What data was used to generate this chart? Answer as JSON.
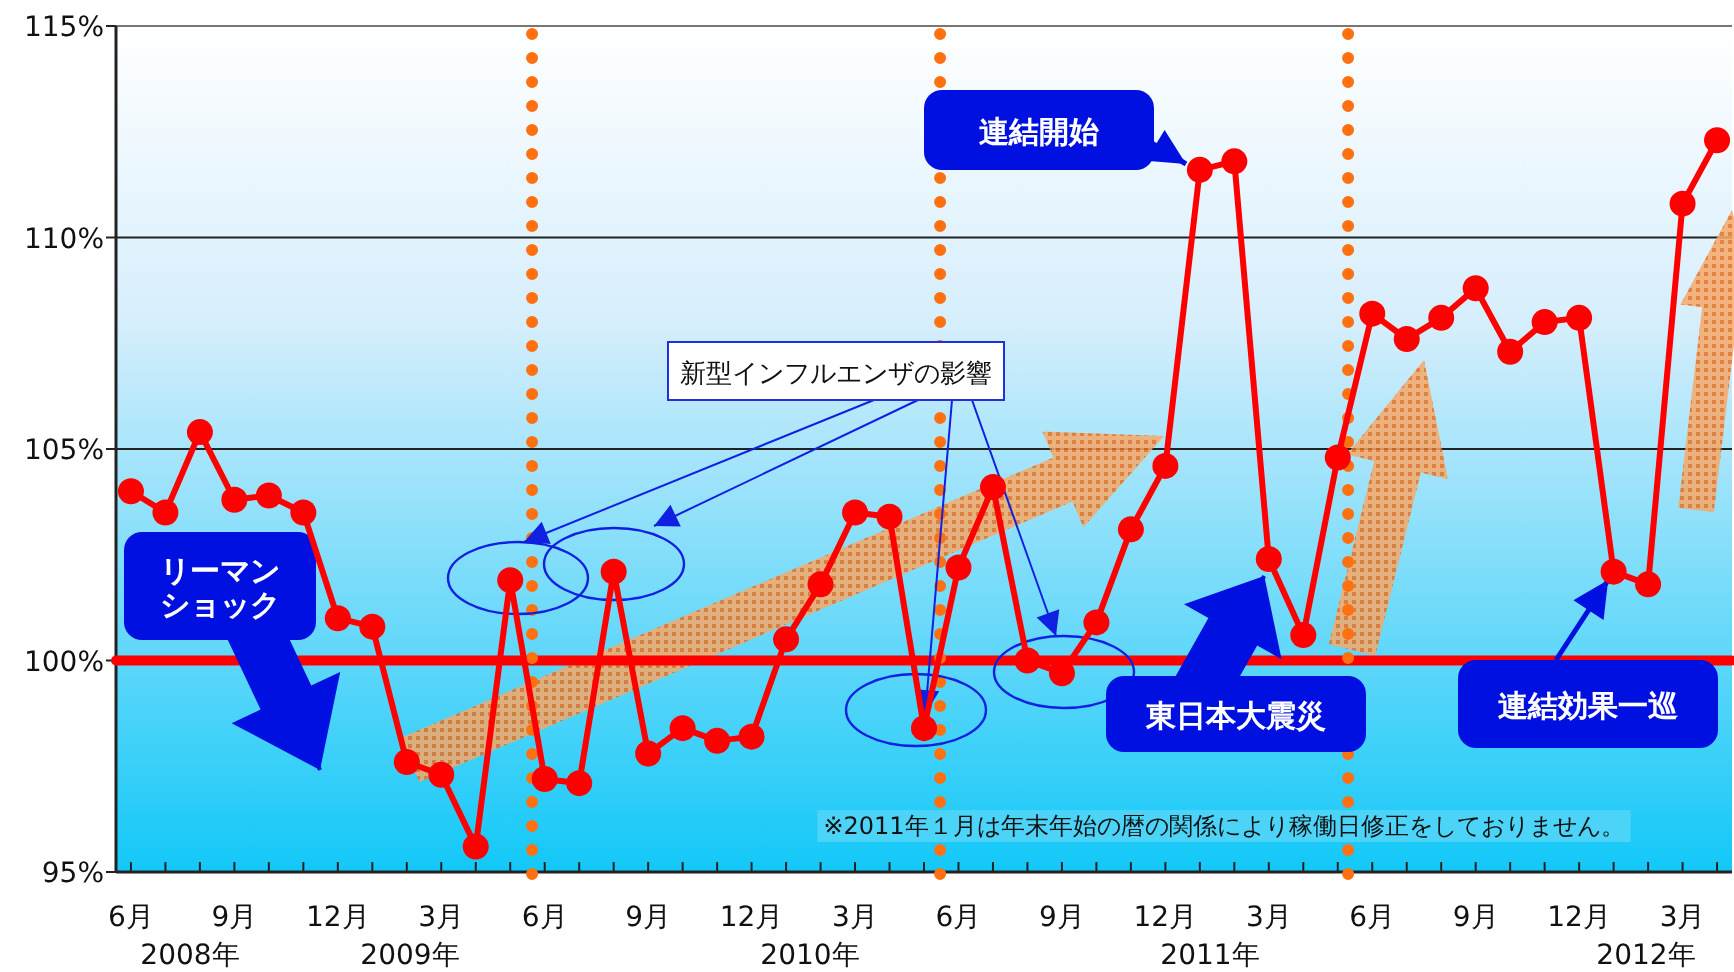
{
  "chart_data": {
    "type": "line",
    "x": [
      "2008-06",
      "2008-07",
      "2008-08",
      "2008-09",
      "2008-10",
      "2008-11",
      "2008-12",
      "2009-01",
      "2009-02",
      "2009-03",
      "2009-04",
      "2009-05",
      "2009-06",
      "2009-07",
      "2009-08",
      "2009-09",
      "2009-10",
      "2009-11",
      "2009-12",
      "2010-01",
      "2010-02",
      "2010-03",
      "2010-04",
      "2010-05",
      "2010-06",
      "2010-07",
      "2010-08",
      "2010-09",
      "2010-10",
      "2010-11",
      "2010-12",
      "2011-01",
      "2011-02",
      "2011-03",
      "2011-04",
      "2011-05",
      "2011-06",
      "2011-07",
      "2011-08",
      "2011-09",
      "2011-10",
      "2011-11",
      "2011-12",
      "2012-01",
      "2012-02",
      "2012-03",
      "2012-04"
    ],
    "series": [
      {
        "color": "#ff0000",
        "values": [
          104.0,
          103.5,
          105.4,
          103.8,
          103.9,
          103.5,
          101.0,
          100.8,
          97.6,
          97.3,
          95.6,
          101.9,
          97.2,
          97.1,
          102.1,
          97.8,
          98.4,
          98.1,
          98.2,
          100.5,
          101.8,
          103.5,
          103.4,
          98.4,
          102.2,
          104.1,
          100.0,
          99.7,
          100.9,
          103.1,
          104.6,
          111.6,
          111.8,
          102.4,
          100.6,
          104.8,
          108.2,
          107.6,
          108.1,
          108.8,
          107.3,
          108.0,
          108.1,
          102.1,
          101.8,
          110.8,
          112.3
        ]
      }
    ],
    "marker": "circle",
    "line_style": "solid",
    "xlim": [
      "2008-05-18",
      "2012-04-14"
    ],
    "xticks": [
      {
        "value": "2008-06",
        "label": "6月"
      },
      {
        "value": "2008-07",
        "label": null
      },
      {
        "value": "2008-08",
        "label": null
      },
      {
        "value": "2008-09",
        "label": "9月"
      },
      {
        "value": "2008-10",
        "label": null
      },
      {
        "value": "2008-11",
        "label": null
      },
      {
        "value": "2008-12",
        "label": "12月"
      },
      {
        "value": "2009-01",
        "label": null
      },
      {
        "value": "2009-02",
        "label": null
      },
      {
        "value": "2009-03",
        "label": "3月"
      },
      {
        "value": "2009-04",
        "label": null
      },
      {
        "value": "2009-05",
        "label": null
      },
      {
        "value": "2009-06",
        "label": "6月"
      },
      {
        "value": "2009-07",
        "label": null
      },
      {
        "value": "2009-08",
        "label": null
      },
      {
        "value": "2009-09",
        "label": "9月"
      },
      {
        "value": "2009-10",
        "label": null
      },
      {
        "value": "2009-11",
        "label": null
      },
      {
        "value": "2009-12",
        "label": "12月"
      },
      {
        "value": "2010-01",
        "label": null
      },
      {
        "value": "2010-02",
        "label": null
      },
      {
        "value": "2010-03",
        "label": "3月"
      },
      {
        "value": "2010-04",
        "label": null
      },
      {
        "value": "2010-05",
        "label": null
      },
      {
        "value": "2010-06",
        "label": "6月"
      },
      {
        "value": "2010-07",
        "label": null
      },
      {
        "value": "2010-08",
        "label": null
      },
      {
        "value": "2010-09",
        "label": "9月"
      },
      {
        "value": "2010-10",
        "label": null
      },
      {
        "value": "2010-11",
        "label": null
      },
      {
        "value": "2010-12",
        "label": "12月"
      },
      {
        "value": "2011-01",
        "label": null
      },
      {
        "value": "2011-02",
        "label": null
      },
      {
        "value": "2011-03",
        "label": "3月"
      },
      {
        "value": "2011-04",
        "label": null
      },
      {
        "value": "2011-05",
        "label": null
      },
      {
        "value": "2011-06",
        "label": "6月"
      },
      {
        "value": "2011-07",
        "label": null
      },
      {
        "value": "2011-08",
        "label": null
      },
      {
        "value": "2011-09",
        "label": "9月"
      },
      {
        "value": "2011-10",
        "label": null
      },
      {
        "value": "2011-11",
        "label": null
      },
      {
        "value": "2011-12",
        "label": "12月"
      },
      {
        "value": "2012-01",
        "label": null
      },
      {
        "value": "2012-02",
        "label": null
      },
      {
        "value": "2012-03",
        "label": "3月"
      },
      {
        "value": "2012-04",
        "label": null
      }
    ],
    "ylim": [
      95,
      115
    ],
    "yticks": [
      {
        "value": 95,
        "label": "95%"
      },
      {
        "value": 100,
        "label": "100%"
      },
      {
        "value": 105,
        "label": "105%"
      },
      {
        "value": 110,
        "label": "110%"
      },
      {
        "value": 115,
        "label": "115%"
      }
    ],
    "grid": "y",
    "ref_lines": [
      {
        "axis": "y",
        "value": 100,
        "color": "#ff0000",
        "line_style": "solid"
      },
      {
        "axis": "x",
        "value": "2009-05-20",
        "color": "#ff7010",
        "line_style": "dotted"
      },
      {
        "axis": "x",
        "value": "2010-05-15",
        "color": "#ff7010",
        "line_style": "dotted"
      },
      {
        "axis": "x",
        "value": "2011-05-10",
        "color": "#ff7010",
        "line_style": "dotted"
      }
    ],
    "annotations": [
      "リーマンショック",
      {
        "text": "新型インフルエンザの影響",
        "x": "2010-05",
        "y": 98.4
      },
      {
        "text": "東日本大震災",
        "x": "2011-02-27",
        "y": 102.0
      },
      "連結開始",
      {
        "text": "連結効果一巡",
        "x": "2012-01",
        "y": 102.1
      },
      "※2011年１月は年末年始の暦の関係により稼働日修正をしておりません。",
      "2008年",
      "2009年",
      "2010年",
      "2011年",
      "2012年"
    ]
  }
}
